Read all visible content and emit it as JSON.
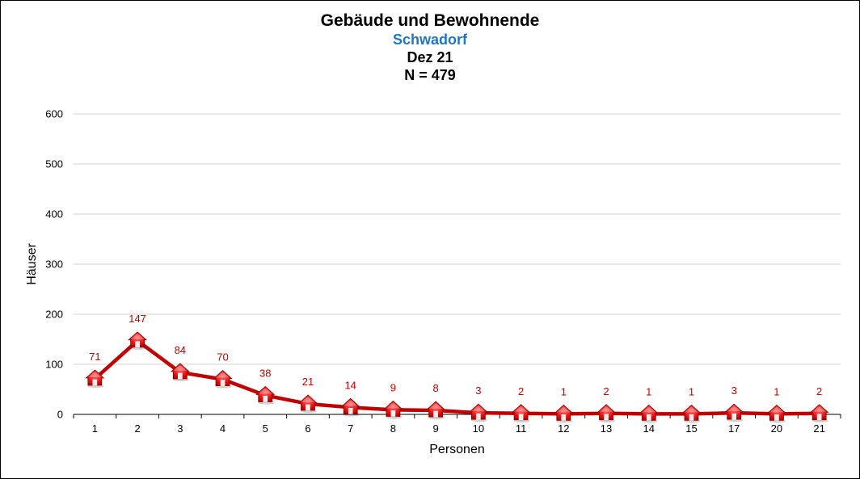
{
  "chart_data": {
    "type": "line",
    "title": "Gebäude und Bewohnende",
    "subtitle": "Schwadorf",
    "period": "Dez 21",
    "total": "N = 479",
    "xlabel": "Personen",
    "ylabel": "Häuser",
    "categories": [
      "1",
      "2",
      "3",
      "4",
      "5",
      "6",
      "7",
      "8",
      "9",
      "10",
      "11",
      "12",
      "13",
      "14",
      "15",
      "17",
      "20",
      "21"
    ],
    "values": [
      71,
      147,
      84,
      70,
      38,
      21,
      14,
      9,
      8,
      3,
      2,
      1,
      2,
      1,
      1,
      3,
      1,
      2
    ],
    "yticks": [
      0,
      100,
      200,
      300,
      400,
      500,
      600
    ],
    "ylim": [
      0,
      600
    ],
    "grid": true,
    "legend": "none",
    "line_color": "#c00000",
    "marker": "house-icon",
    "label_color": "#c00000",
    "subtitle_color": "#1f77c4"
  }
}
